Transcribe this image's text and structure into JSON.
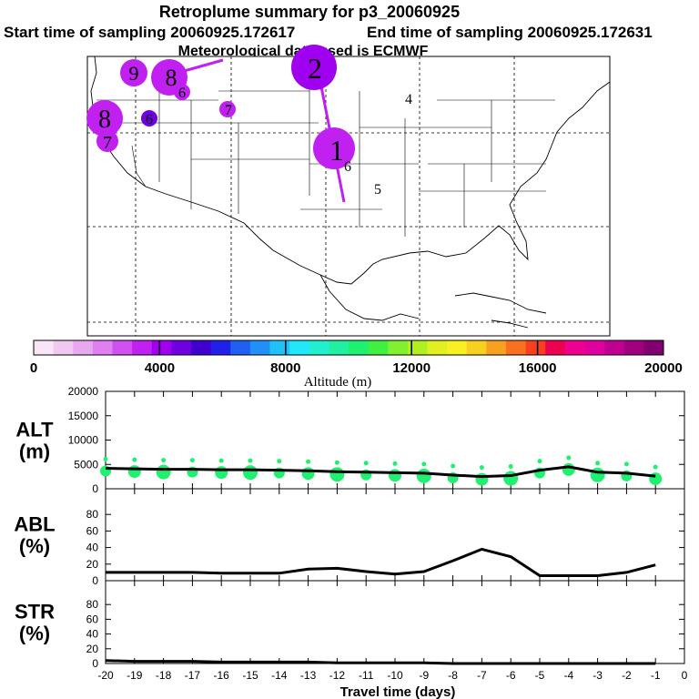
{
  "header": {
    "title": "Retroplume summary for p3_20060925",
    "start_label": "Start time of sampling 20060925.172617",
    "end_label": "End time of sampling 20060925.172631",
    "met_label": "Meteorological data used is ECMWF"
  },
  "map": {
    "plume_labels": [
      "9",
      "8",
      "6",
      "2",
      "4",
      "7",
      "8",
      "6",
      "7",
      "1",
      "6",
      "5"
    ]
  },
  "colorbar": {
    "ticks": [
      "0",
      "4000",
      "8000",
      "12000",
      "16000",
      "20000"
    ],
    "label": "Altitude (m)",
    "colors": [
      "#f8e6f8",
      "#f0c8f0",
      "#e8a8f0",
      "#e080f0",
      "#d050f0",
      "#c020f0",
      "#a000f0",
      "#7000e0",
      "#4000d0",
      "#2020e8",
      "#2060f0",
      "#2090f8",
      "#20c0f8",
      "#20e8f8",
      "#20f0d0",
      "#20f0a0",
      "#20f070",
      "#40f040",
      "#80f030",
      "#b0f020",
      "#e0f020",
      "#f8f020",
      "#f8d020",
      "#f8a020",
      "#f87020",
      "#f84020",
      "#f00050",
      "#f00090",
      "#e000a0",
      "#c00090",
      "#a00080",
      "#800070"
    ]
  },
  "chart_data": [
    {
      "type": "line",
      "name": "ALT",
      "ylabel_line1": "ALT",
      "ylabel_line2": "(m)",
      "x": [
        -20,
        -19,
        -18,
        -17,
        -16,
        -15,
        -14,
        -13,
        -12,
        -11,
        -10,
        -9,
        -8,
        -7,
        -6,
        -5,
        -4,
        -3,
        -2,
        -1
      ],
      "values": [
        4200,
        4100,
        4000,
        4000,
        3900,
        3900,
        3800,
        3700,
        3500,
        3400,
        3300,
        3200,
        2800,
        2500,
        2700,
        3800,
        4500,
        3400,
        3200,
        2600
      ],
      "ylim": [
        0,
        20000
      ],
      "yticks": [
        "0",
        "5000",
        "10000",
        "15000",
        "20000"
      ],
      "scatter_color": "#20f070"
    },
    {
      "type": "line",
      "name": "ABL",
      "ylabel_line1": "ABL",
      "ylabel_line2": "(%)",
      "x": [
        -20,
        -19,
        -18,
        -17,
        -16,
        -15,
        -14,
        -13,
        -12,
        -11,
        -10,
        -9,
        -8,
        -7,
        -6,
        -5,
        -4,
        -3,
        -2,
        -1
      ],
      "values": [
        10,
        10,
        10,
        10,
        9,
        9,
        9,
        14,
        15,
        11,
        8,
        11,
        24,
        38,
        29,
        6,
        6,
        6,
        10,
        19
      ],
      "ylim": [
        0,
        100
      ],
      "yticks": [
        "0",
        "20",
        "40",
        "60",
        "80"
      ]
    },
    {
      "type": "line",
      "name": "STR",
      "ylabel_line1": "STR",
      "ylabel_line2": "(%)",
      "x": [
        -20,
        -19,
        -18,
        -17,
        -16,
        -15,
        -14,
        -13,
        -12,
        -11,
        -10,
        -9,
        -8,
        -7,
        -6,
        -5,
        -4,
        -3,
        -2,
        -1
      ],
      "values": [
        4,
        3,
        3,
        3,
        2,
        2,
        2,
        2,
        1,
        1,
        1,
        1,
        0,
        0,
        0,
        0,
        0,
        0,
        0,
        0
      ],
      "ylim": [
        0,
        100
      ],
      "yticks": [
        "0",
        "20",
        "40",
        "60",
        "80"
      ]
    }
  ],
  "xaxis": {
    "ticks": [
      "-20",
      "-19",
      "-18",
      "-17",
      "-16",
      "-15",
      "-14",
      "-13",
      "-12",
      "-11",
      "-10",
      "-9",
      "-8",
      "-7",
      "-6",
      "-5",
      "-4",
      "-3",
      "-2",
      "-1",
      "0"
    ],
    "label": "Travel time (days)",
    "xlim": [
      -20,
      0
    ]
  }
}
